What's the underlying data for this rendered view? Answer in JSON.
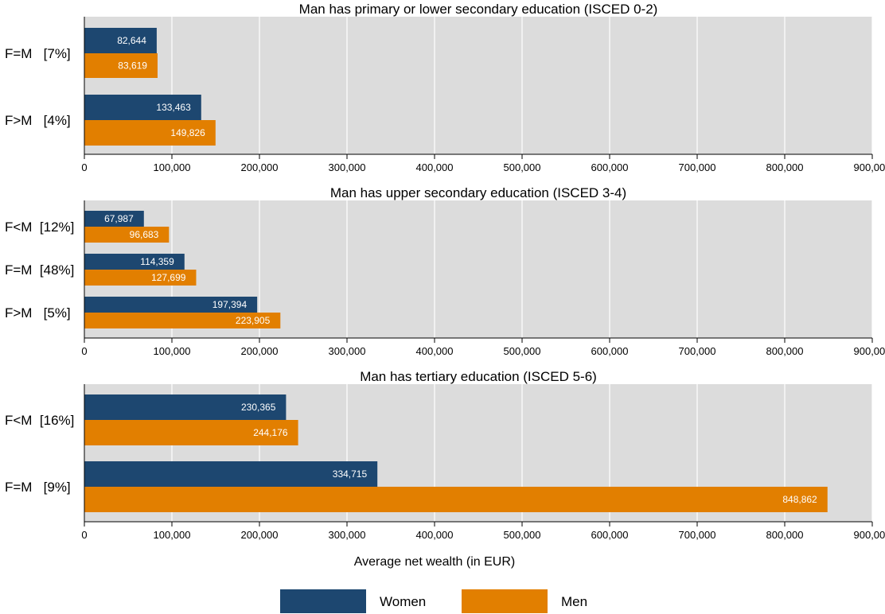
{
  "chart_data": {
    "type": "bar",
    "orientation": "horizontal",
    "xlabel": "Average net wealth (in EUR)",
    "xlim": [
      0,
      900000
    ],
    "xticks": [
      0,
      100000,
      200000,
      300000,
      400000,
      500000,
      600000,
      700000,
      800000,
      900000
    ],
    "xtick_labels": [
      "0",
      "100,000",
      "200,000",
      "300,000",
      "400,000",
      "500,000",
      "600,000",
      "700,000",
      "800,000",
      "900,000"
    ],
    "grid": true,
    "legend": {
      "placement": "bottom",
      "entries": [
        {
          "name": "Women",
          "color": "#1d4770"
        },
        {
          "name": "Men",
          "color": "#e27f00"
        }
      ]
    },
    "panels": [
      {
        "title": "Man has primary or lower secondary education (ISCED 0-2)",
        "categories": [
          {
            "label": "F=M   [7%]",
            "women": 82644,
            "women_label": "82,644",
            "men": 83619,
            "men_label": "83,619"
          },
          {
            "label": "F>M   [4%]",
            "women": 133463,
            "women_label": "133,463",
            "men": 149826,
            "men_label": "149,826"
          }
        ]
      },
      {
        "title": "Man has upper secondary education (ISCED 3-4)",
        "categories": [
          {
            "label": "F<M  [12%]",
            "women": 67987,
            "women_label": "67,987",
            "men": 96683,
            "men_label": "96,683"
          },
          {
            "label": "F=M  [48%]",
            "women": 114359,
            "women_label": "114,359",
            "men": 127699,
            "men_label": "127,699"
          },
          {
            "label": "F>M   [5%]",
            "women": 197394,
            "women_label": "197,394",
            "men": 223905,
            "men_label": "223,905"
          }
        ]
      },
      {
        "title": "Man has tertiary education (ISCED 5-6)",
        "categories": [
          {
            "label": "F<M  [16%]",
            "women": 230365,
            "women_label": "230,365",
            "men": 244176,
            "men_label": "244,176"
          },
          {
            "label": "F=M   [9%]",
            "women": 334715,
            "women_label": "334,715",
            "men": 848862,
            "men_label": "848,862"
          }
        ]
      }
    ]
  }
}
